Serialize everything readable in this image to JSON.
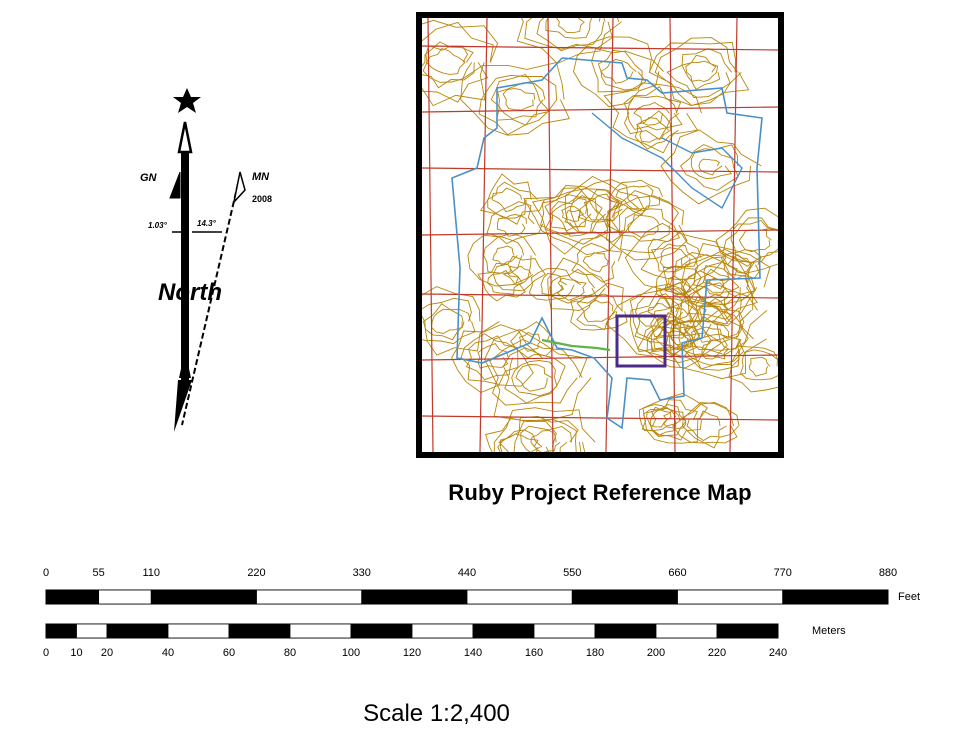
{
  "north_arrow": {
    "gn_label": "GN",
    "mn_label": "MN",
    "mn_year": "2008",
    "gn_angle": "1.03°",
    "mn_angle": "14.3°",
    "north_label": "North",
    "icons": [
      "star-icon",
      "true-north-arrow-icon"
    ]
  },
  "map": {
    "title": "Ruby Project Reference Map",
    "colors": {
      "frame": "#000000",
      "grid": "#c0392b",
      "contours": "#b8860b",
      "boundary": "#4a90c8",
      "highlight_box": "#4b2a8a",
      "stream": "#5fb548"
    }
  },
  "scale_feet": {
    "unit": "Feet",
    "ticks": [
      "0",
      "55",
      "110",
      "220",
      "330",
      "440",
      "550",
      "660",
      "770",
      "880"
    ],
    "values": [
      0,
      55,
      110,
      220,
      330,
      440,
      550,
      660,
      770,
      880
    ]
  },
  "scale_meters": {
    "unit": "Meters",
    "ticks": [
      "0",
      "10",
      "20",
      "40",
      "60",
      "80",
      "100",
      "120",
      "140",
      "160",
      "180",
      "200",
      "220",
      "240"
    ],
    "values": [
      0,
      10,
      20,
      40,
      60,
      80,
      100,
      120,
      140,
      160,
      180,
      200,
      220,
      240
    ]
  },
  "scale": {
    "text": "Scale 1:2,400"
  }
}
